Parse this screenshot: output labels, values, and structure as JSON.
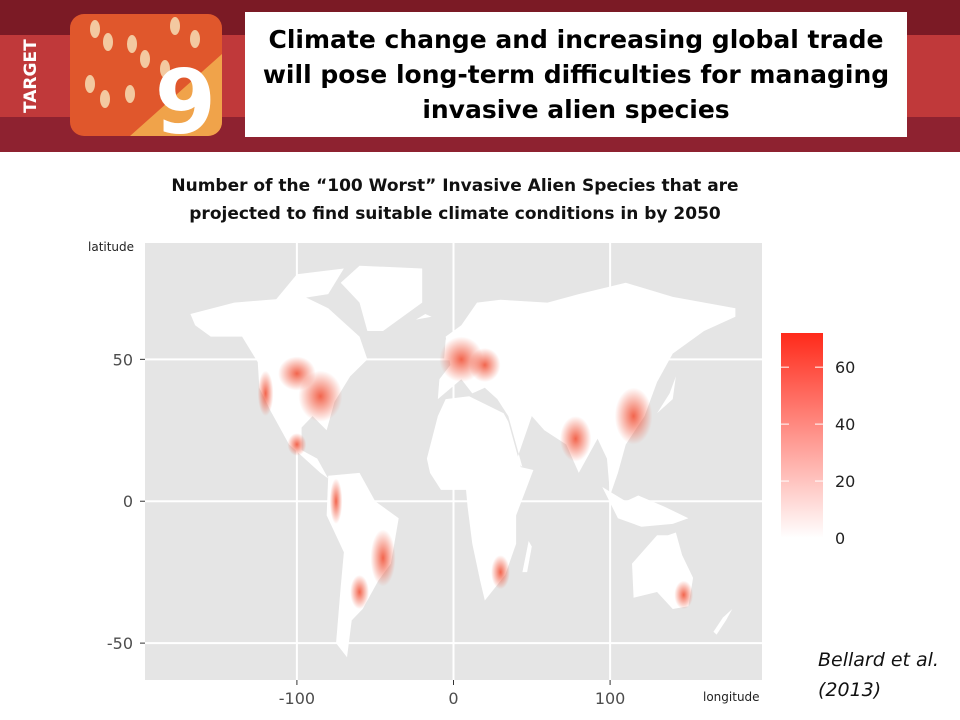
{
  "header": {
    "badge_label": "TARGET",
    "badge_number": "9",
    "headline": "Climate change and increasing  global trade will pose long-term difficulties for managing invasive alien species"
  },
  "chart_data": {
    "type": "map",
    "title": "Number of the “100 Worst” Invasive Alien Species that are projected to find suitable climate conditions in by 2050",
    "xlabel": "longitude",
    "ylabel": "latitude",
    "xlim": [
      -197,
      197
    ],
    "ylim": [
      -63,
      91
    ],
    "xticks": [
      -100,
      0,
      100
    ],
    "yticks": [
      -50,
      0,
      50
    ],
    "grid": true,
    "colorbar": {
      "lim": [
        0,
        72
      ],
      "ticks": [
        0,
        20,
        40,
        60
      ],
      "low_color": "#ffffff",
      "high_color": "#ff2a1a"
    }
  },
  "citation": "Bellard et al. (2013)"
}
